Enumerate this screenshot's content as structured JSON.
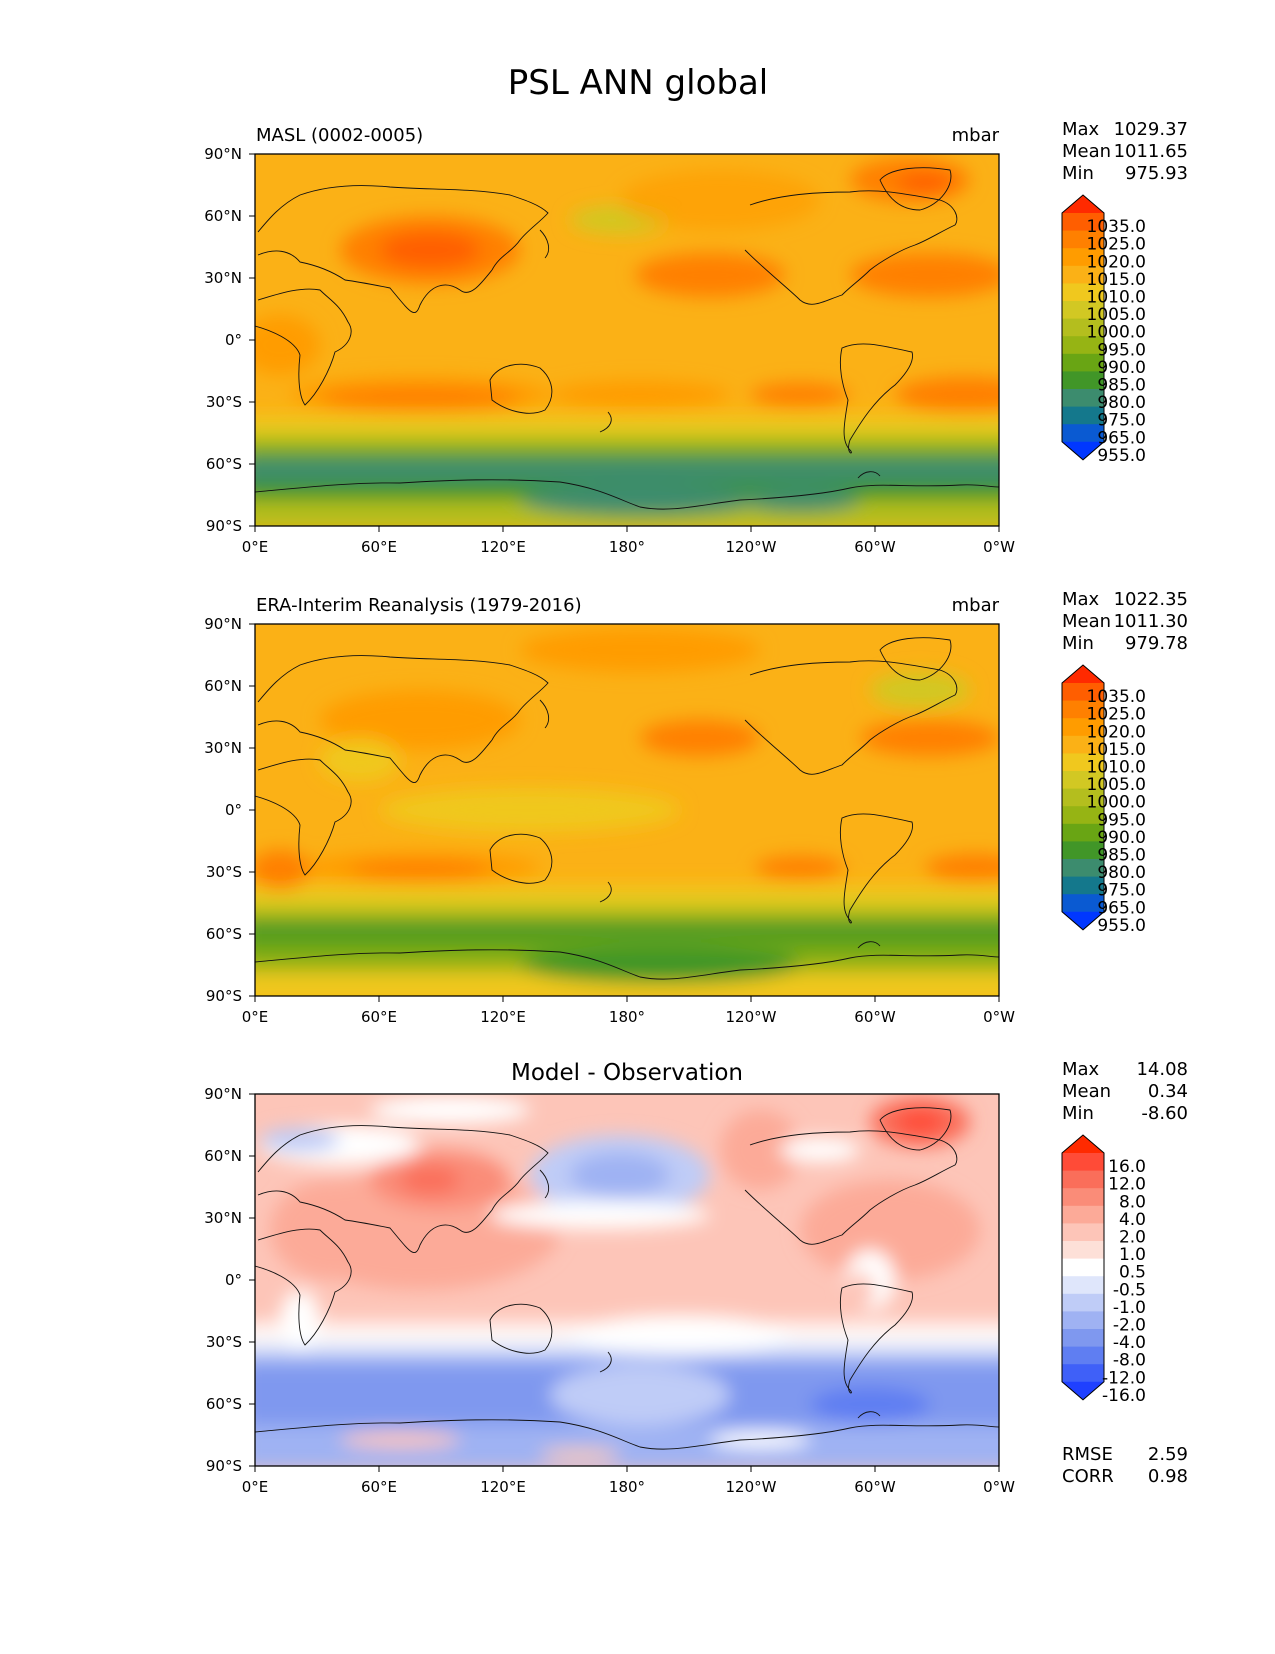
{
  "figure": {
    "title": "PSL ANN global",
    "lat_ticks": [
      "90°N",
      "60°N",
      "30°N",
      "0°",
      "30°S",
      "60°S",
      "90°S"
    ],
    "lon_ticks": [
      "0°E",
      "60°E",
      "120°E",
      "180°",
      "120°W",
      "60°W",
      "0°W"
    ]
  },
  "panels": [
    {
      "id": "model",
      "title": "MASL (0002-0005)",
      "units": "mbar",
      "stats": [
        {
          "label": "Max",
          "value": "1029.37"
        },
        {
          "label": "Mean",
          "value": "1011.65"
        },
        {
          "label": "Min",
          "value": "975.93"
        }
      ],
      "colorbar": {
        "labels": [
          "1035.0",
          "1025.0",
          "1020.0",
          "1015.0",
          "1010.0",
          "1005.0",
          "1000.0",
          "995.0",
          "990.0",
          "985.0",
          "980.0",
          "975.0",
          "965.0",
          "955.0"
        ],
        "colors": [
          "#ff2a00",
          "#ff5e00",
          "#ff8000",
          "#ff9c00",
          "#fbb116",
          "#f0c81e",
          "#d2c823",
          "#b4be1e",
          "#96b414",
          "#69a514",
          "#419628",
          "#3c8c6e",
          "#14788c",
          "#0a5ad2",
          "#0037ff"
        ]
      }
    },
    {
      "id": "obs",
      "title": "ERA-Interim Reanalysis (1979-2016)",
      "units": "mbar",
      "stats": [
        {
          "label": "Max",
          "value": "1022.35"
        },
        {
          "label": "Mean",
          "value": "1011.30"
        },
        {
          "label": "Min",
          "value": "979.78"
        }
      ],
      "colorbar": {
        "labels": [
          "1035.0",
          "1025.0",
          "1020.0",
          "1015.0",
          "1010.0",
          "1005.0",
          "1000.0",
          "995.0",
          "990.0",
          "985.0",
          "980.0",
          "975.0",
          "965.0",
          "955.0"
        ],
        "colors": [
          "#ff2a00",
          "#ff5e00",
          "#ff8000",
          "#ff9c00",
          "#fbb116",
          "#f0c81e",
          "#d2c823",
          "#b4be1e",
          "#96b414",
          "#69a514",
          "#419628",
          "#3c8c6e",
          "#14788c",
          "#0a5ad2",
          "#0037ff"
        ]
      }
    },
    {
      "id": "diff",
      "title": "Model - Observation",
      "units": "",
      "stats": [
        {
          "label": "Max",
          "value": "14.08"
        },
        {
          "label": "Mean",
          "value": "0.34"
        },
        {
          "label": "Min",
          "value": "-8.60"
        }
      ],
      "extra_stats": [
        {
          "label": "RMSE",
          "value": "2.59"
        },
        {
          "label": "CORR",
          "value": "0.98"
        }
      ],
      "colorbar": {
        "labels": [
          "16.0",
          "12.0",
          "8.0",
          "4.0",
          "2.0",
          "1.0",
          "0.5",
          "-0.5",
          "-1.0",
          "-2.0",
          "-4.0",
          "-8.0",
          "-12.0",
          "-16.0"
        ],
        "colors": [
          "#ff2a00",
          "#ff4b37",
          "#fa6e5a",
          "#fa8c78",
          "#fcaa98",
          "#fdc5b8",
          "#fde0d8",
          "#ffffff",
          "#dfe6fb",
          "#bfccf7",
          "#9fb2f3",
          "#7f98ef",
          "#5f7ef2",
          "#3f60f8",
          "#1f40ff"
        ]
      }
    }
  ]
}
